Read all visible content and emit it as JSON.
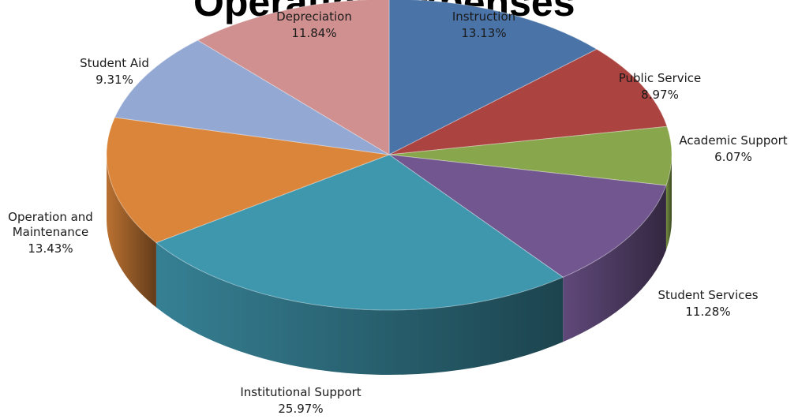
{
  "chart_data": {
    "type": "pie",
    "title": "Operating Expenses",
    "three_d": true,
    "legend": "none",
    "slices": [
      {
        "name": "Instruction",
        "value": 13.13,
        "label": "13.13%",
        "color": "#4a73a8"
      },
      {
        "name": "Public Service",
        "value": 8.97,
        "label": "8.97%",
        "color": "#ab4440"
      },
      {
        "name": "Academic Support",
        "value": 6.07,
        "label": "6.07%",
        "color": "#88a64b"
      },
      {
        "name": "Student Services",
        "value": 11.28,
        "label": "11.28%",
        "color": "#71568f"
      },
      {
        "name": "Institutional Support",
        "value": 25.97,
        "label": "25.97%",
        "color": "#3f97ae"
      },
      {
        "name": "Operation and Maintenance",
        "value": 13.43,
        "label": "13.43%",
        "color": "#db853a"
      },
      {
        "name": "Student Aid",
        "value": 9.31,
        "label": "9.31%",
        "color": "#93a9d3"
      },
      {
        "name": "Depreciation",
        "value": 11.84,
        "label": "11.84%",
        "color": "#d19090"
      }
    ]
  }
}
